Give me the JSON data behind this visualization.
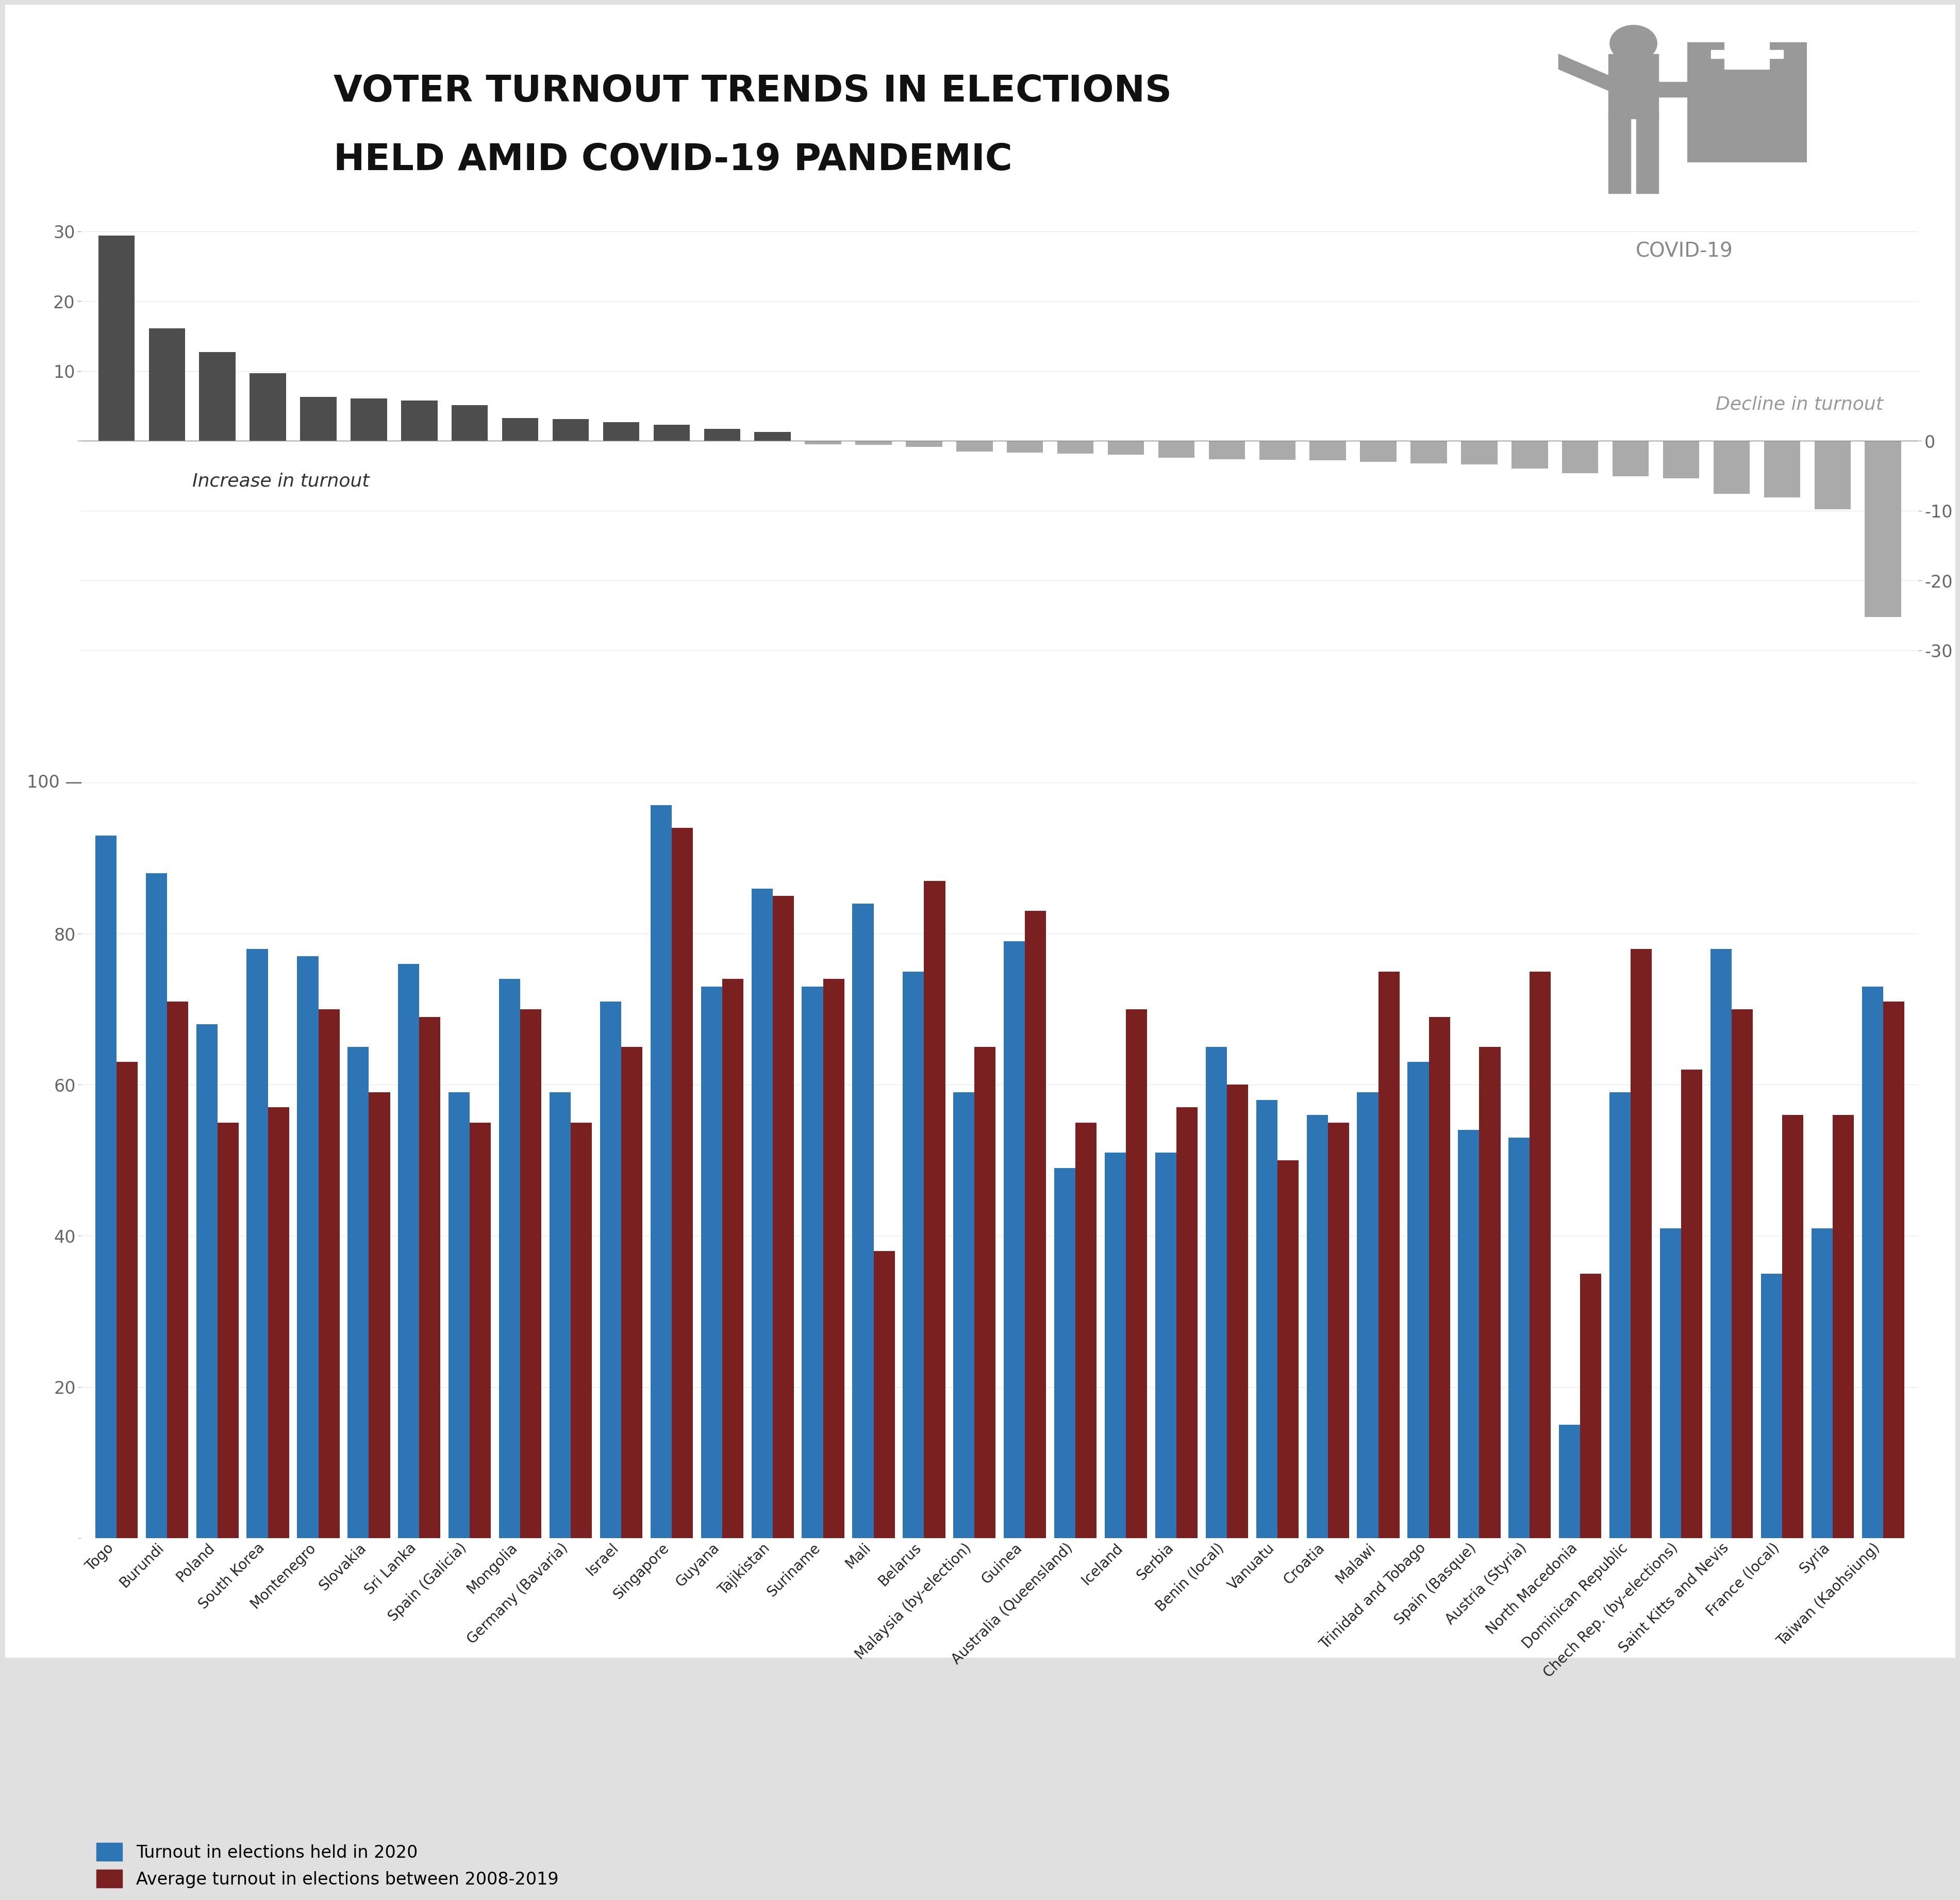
{
  "title_line1": "VOTER TURNOUT TRENDS IN ELECTIONS",
  "title_line2": "HELD AMID COVID-19 PANDEMIC",
  "bg_color": "#e0e0e0",
  "panel_color": "#ffffff",
  "bar_color_dark": "#4d4d4d",
  "bar_color_light": "#aaaaaa",
  "blue_color": "#2e75b6",
  "red_color": "#7b2020",
  "countries": [
    "Togo",
    "Burundi",
    "Poland",
    "South Korea",
    "Montenegro",
    "Slovakia",
    "Sri Lanka",
    "Spain (Galicia)",
    "Mongolia",
    "Germany (Bavaria)",
    "Israel",
    "Singapore",
    "Guyana",
    "Tajikistan",
    "Suriname",
    "Mali",
    "Belarus",
    "Malaysia (by-election)",
    "Guinea",
    "Australia (Queensland)",
    "Iceland",
    "Serbia",
    "Benin (local)",
    "Vanuatu",
    "Croatia",
    "Malawi",
    "Trinidad and Tobago",
    "Spain (Basque)",
    "Austria (Styria)",
    "North Macedonia",
    "Dominican Republic",
    "Chech Rep. (by-elections)",
    "Saint Kitts and Nevis",
    "France (local)",
    "Syria",
    "Taiwan (Kaohsiung)"
  ],
  "turnout_2020": [
    93,
    88,
    68,
    78,
    77,
    65,
    76,
    59,
    74,
    59,
    71,
    97,
    73,
    86,
    73,
    84,
    75,
    59,
    79,
    49,
    51,
    51,
    65,
    58,
    56,
    59,
    63,
    54,
    53,
    15,
    59,
    41,
    78,
    35,
    41,
    73
  ],
  "turnout_avg": [
    63,
    71,
    55,
    57,
    70,
    59,
    69,
    55,
    70,
    55,
    65,
    94,
    74,
    85,
    74,
    38,
    87,
    65,
    83,
    55,
    70,
    57,
    60,
    50,
    55,
    75,
    69,
    65,
    75,
    35,
    78,
    62,
    70,
    56,
    56,
    71
  ],
  "diff_values": [
    29.4,
    16.1,
    12.7,
    9.7,
    6.3,
    6.1,
    5.8,
    5.1,
    3.3,
    3.1,
    2.7,
    2.3,
    1.7,
    1.3,
    -0.5,
    -0.6,
    -0.9,
    -1.5,
    -1.7,
    -1.8,
    -2.0,
    -2.4,
    -2.6,
    -2.7,
    -2.8,
    -3.0,
    -3.2,
    -3.4,
    -4.0,
    -4.6,
    -5.1,
    -5.4,
    -7.6,
    -8.1,
    -9.8,
    -25.2
  ],
  "increase_label": "Increase in turnout",
  "decline_label": "Decline in turnout",
  "legend_2020": "Turnout in elections held in 2020",
  "legend_avg": "Average turnout in elections between 2008-2019",
  "covid_label": "COVID-19",
  "person_color": "#999999"
}
